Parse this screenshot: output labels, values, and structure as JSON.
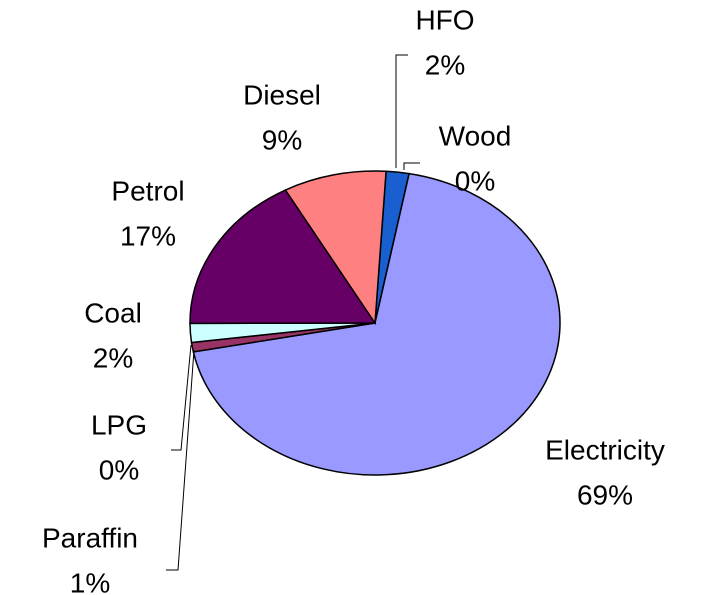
{
  "chart_data": {
    "type": "pie",
    "categories": [
      "HFO",
      "Wood",
      "Electricity",
      "Paraffin",
      "LPG",
      "Coal",
      "Petrol",
      "Diesel"
    ],
    "values": [
      2,
      0,
      69,
      1,
      0,
      2,
      17,
      9
    ],
    "value_labels": [
      "2%",
      "0%",
      "69%",
      "1%",
      "0%",
      "2%",
      "17%",
      "9%"
    ],
    "colors": [
      "#1a5fd0",
      "#ffffcc",
      "#9999ff",
      "#993366",
      "#000080",
      "#ccffff",
      "#660066",
      "#ff8080"
    ]
  }
}
